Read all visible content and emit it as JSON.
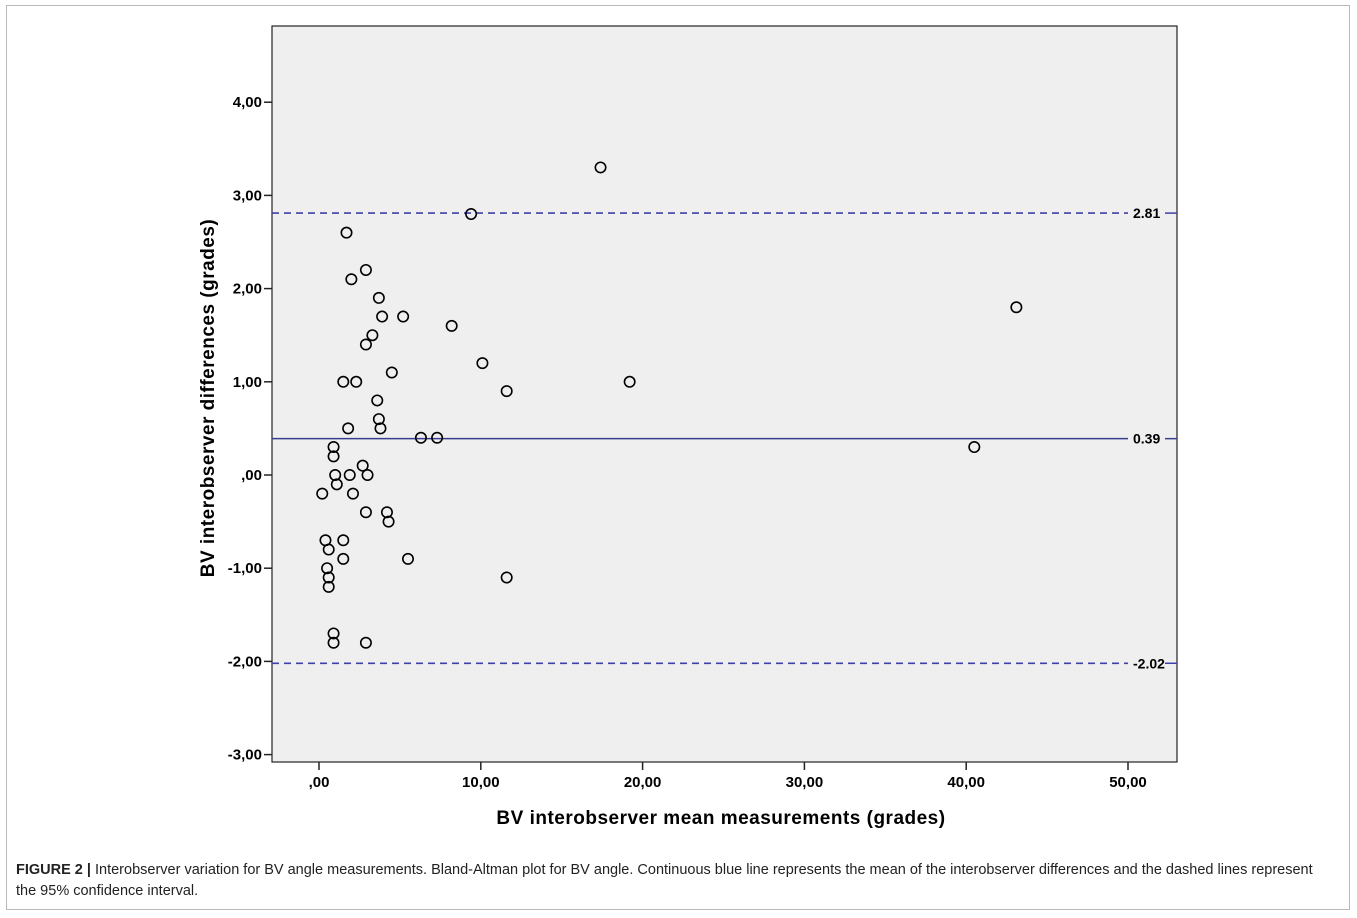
{
  "chart_data": {
    "type": "scatter",
    "xlabel": "BV interobserver mean measurements (grades)",
    "ylabel": "BV interobserver differences (grades)",
    "xlim": [
      -3,
      52
    ],
    "ylim": [
      -3,
      4.95
    ],
    "x_ticks": [
      {
        "value": 0,
        "label": ",00"
      },
      {
        "value": 10,
        "label": "10,00"
      },
      {
        "value": 20,
        "label": "20,00"
      },
      {
        "value": 30,
        "label": "30,00"
      },
      {
        "value": 40,
        "label": "40,00"
      },
      {
        "value": 50,
        "label": "50,00"
      }
    ],
    "y_ticks": [
      {
        "value": -3,
        "label": "-3,00"
      },
      {
        "value": -2,
        "label": "-2,00"
      },
      {
        "value": -1,
        "label": "-1,00"
      },
      {
        "value": 0,
        "label": ",00"
      },
      {
        "value": 1,
        "label": "1,00"
      },
      {
        "value": 2,
        "label": "2,00"
      },
      {
        "value": 3,
        "label": "3,00"
      },
      {
        "value": 4,
        "label": "4,00"
      }
    ],
    "reference_lines": [
      {
        "value": 2.81,
        "label": "2.81",
        "style": "dashed"
      },
      {
        "value": 0.39,
        "label": "0.39",
        "style": "solid"
      },
      {
        "value": -2.02,
        "label": "-2.02",
        "style": "dashed"
      }
    ],
    "grid": false,
    "points": [
      [
        17.4,
        3.3
      ],
      [
        9.4,
        2.8
      ],
      [
        1.7,
        2.6
      ],
      [
        2.9,
        2.2
      ],
      [
        2.0,
        2.1
      ],
      [
        3.7,
        1.9
      ],
      [
        3.9,
        1.7
      ],
      [
        5.2,
        1.7
      ],
      [
        8.2,
        1.6
      ],
      [
        3.3,
        1.5
      ],
      [
        2.9,
        1.4
      ],
      [
        10.1,
        1.2
      ],
      [
        4.5,
        1.1
      ],
      [
        1.5,
        1.0
      ],
      [
        2.3,
        1.0
      ],
      [
        11.6,
        0.9
      ],
      [
        19.2,
        1.0
      ],
      [
        43.1,
        1.8
      ],
      [
        3.6,
        0.8
      ],
      [
        3.7,
        0.6
      ],
      [
        1.8,
        0.5
      ],
      [
        3.8,
        0.5
      ],
      [
        6.3,
        0.4
      ],
      [
        7.3,
        0.4
      ],
      [
        0.9,
        0.3
      ],
      [
        40.5,
        0.3
      ],
      [
        0.9,
        0.2
      ],
      [
        2.7,
        0.1
      ],
      [
        1.0,
        0.0
      ],
      [
        1.9,
        0.0
      ],
      [
        3.0,
        0.0
      ],
      [
        1.1,
        -0.1
      ],
      [
        0.2,
        -0.2
      ],
      [
        2.1,
        -0.2
      ],
      [
        4.2,
        -0.4
      ],
      [
        2.9,
        -0.4
      ],
      [
        4.3,
        -0.5
      ],
      [
        0.4,
        -0.7
      ],
      [
        1.5,
        -0.7
      ],
      [
        0.6,
        -0.8
      ],
      [
        1.5,
        -0.9
      ],
      [
        5.5,
        -0.9
      ],
      [
        0.5,
        -1.0
      ],
      [
        0.6,
        -1.1
      ],
      [
        11.6,
        -1.1
      ],
      [
        0.6,
        -1.2
      ],
      [
        0.9,
        -1.7
      ],
      [
        0.9,
        -1.8
      ],
      [
        2.9,
        -1.8
      ]
    ],
    "colors": {
      "plot_background": "#efefef",
      "mean_line": "#3a3d8f",
      "limit_lines": "#3e41a8",
      "marker_edge": "#000000"
    }
  },
  "caption": {
    "label": "FIGURE 2 |",
    "text": " Interobserver variation for BV angle measurements. Bland-Altman plot for BV angle. Continuous blue line represents the mean of the interobserver differences and the dashed lines represent the 95% confidence interval."
  }
}
